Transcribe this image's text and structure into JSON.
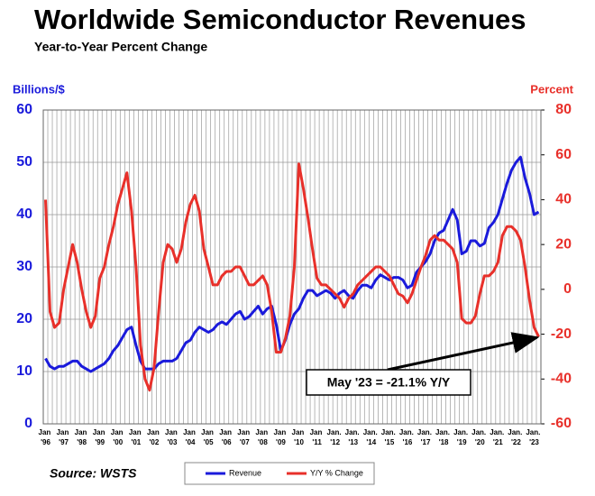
{
  "chart_data": {
    "type": "line",
    "title": "Worldwide Semiconductor Revenues",
    "subtitle": "Year-to-Year Percent Change",
    "ylabel": "Billions/$",
    "y2label": "Percent",
    "source": "Source: WSTS",
    "annotation": "May '23 = -21.1% Y/Y",
    "categories": [
      "Jan '96",
      null,
      null,
      null,
      "Jan '97",
      null,
      null,
      null,
      "Jan '98",
      null,
      null,
      null,
      "Jan '99",
      null,
      null,
      null,
      "Jan '00",
      null,
      null,
      null,
      "Jan '01",
      null,
      null,
      null,
      "Jan '02",
      null,
      null,
      null,
      "Jan '03",
      null,
      null,
      null,
      "Jan '04",
      null,
      null,
      null,
      "Jan '05",
      null,
      null,
      null,
      "Jan '06",
      null,
      null,
      null,
      "Jan '07",
      null,
      null,
      null,
      "Jan '08",
      null,
      null,
      null,
      "Jan '09",
      null,
      null,
      null,
      "Jan '10",
      null,
      null,
      null,
      "Jan '11",
      null,
      null,
      null,
      "Jan. '12",
      null,
      null,
      null,
      "Jan. '13",
      null,
      null,
      null,
      "Jan. '14",
      null,
      null,
      null,
      "Jan. '15",
      null,
      null,
      null,
      "Jan. '16",
      null,
      null,
      null,
      "Jan. '17",
      null,
      null,
      null,
      "Jan. '18",
      null,
      null,
      null,
      "Jan. '19",
      null,
      null,
      null,
      "Jan. '20",
      null,
      null,
      null,
      "Jan. '21",
      null,
      null,
      null,
      "Jan. '22",
      null,
      null,
      null,
      "Jan. '23",
      null
    ],
    "series": [
      {
        "name": "Revenue",
        "color": "#1a1adb",
        "axis": "y",
        "values": [
          12.5,
          11,
          10.5,
          11,
          11,
          11.5,
          12,
          12,
          11,
          10.5,
          10,
          10.5,
          11,
          11.5,
          12.5,
          14,
          15,
          16.5,
          18,
          18.5,
          15,
          12,
          10.5,
          10.5,
          10.5,
          11.5,
          12,
          12,
          12,
          12.5,
          14,
          15.5,
          16,
          17.5,
          18.5,
          18,
          17.5,
          18,
          19,
          19.5,
          19,
          20,
          21,
          21.5,
          20,
          20.5,
          21.5,
          22.5,
          21,
          22,
          22.5,
          19,
          14,
          16,
          19,
          21,
          22,
          24,
          25.5,
          25.5,
          24.5,
          25,
          25.5,
          25,
          24,
          25,
          25.5,
          24.5,
          24,
          25.5,
          26.5,
          26.5,
          26,
          27.5,
          28.5,
          28,
          27.5,
          28,
          28,
          27.5,
          26,
          26.5,
          29,
          30,
          31,
          32.5,
          35,
          36.5,
          37,
          39,
          41,
          39,
          32.5,
          33,
          35,
          35,
          34,
          34.5,
          37.5,
          38.5,
          40,
          43,
          46,
          48.5,
          50,
          51,
          47,
          44,
          40,
          40.5
        ]
      },
      {
        "name": "Y/Y % Change",
        "color": "#e8302a",
        "axis": "y2",
        "values": [
          40,
          -10,
          -17,
          -15,
          0,
          10,
          20,
          12,
          0,
          -10,
          -17,
          -12,
          5,
          10,
          20,
          28,
          38,
          45,
          52,
          35,
          10,
          -25,
          -40,
          -45,
          -35,
          -10,
          12,
          20,
          18,
          12,
          18,
          30,
          38,
          42,
          35,
          18,
          10,
          2,
          2,
          6,
          8,
          8,
          10,
          10,
          6,
          2,
          2,
          4,
          6,
          2,
          -10,
          -28,
          -28,
          -22,
          -12,
          10,
          56,
          45,
          32,
          18,
          5,
          2,
          2,
          0,
          -2,
          -4,
          -8,
          -4,
          -2,
          2,
          4,
          6,
          8,
          10,
          10,
          8,
          6,
          2,
          -2,
          -3,
          -6,
          -2,
          4,
          10,
          15,
          22,
          24,
          22,
          22,
          20,
          18,
          12,
          -13,
          -15,
          -15,
          -12,
          -2,
          6,
          6,
          8,
          12,
          24,
          28,
          28,
          26,
          22,
          10,
          -5,
          -17,
          -21.1
        ]
      }
    ],
    "ylim": [
      0,
      60
    ],
    "yticks": [
      0,
      10,
      20,
      30,
      40,
      50,
      60
    ],
    "y2lim": [
      -60,
      80
    ],
    "y2ticks": [
      -60,
      -40,
      -20,
      0,
      20,
      40,
      60,
      80
    ],
    "grid": true
  }
}
